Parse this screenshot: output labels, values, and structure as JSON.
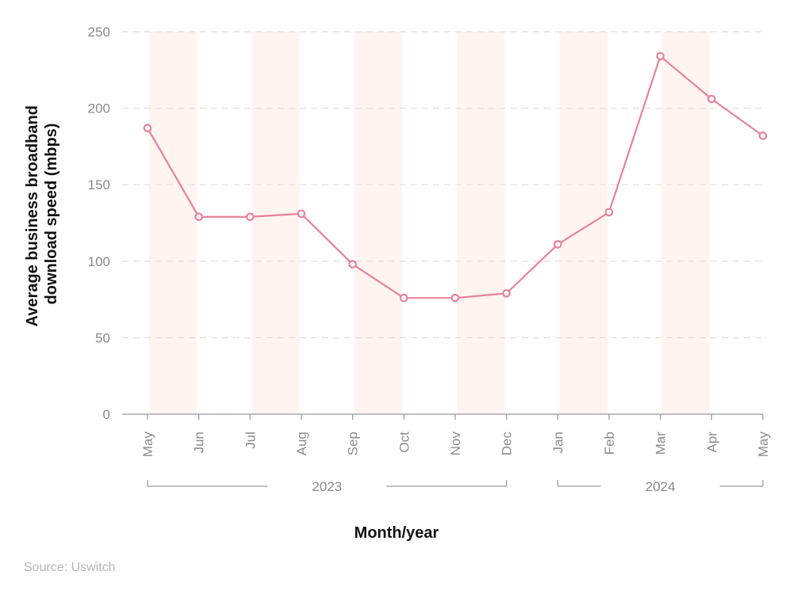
{
  "chart_data": {
    "type": "line",
    "categories": [
      "May",
      "Jun",
      "Jul",
      "Aug",
      "Sep",
      "Oct",
      "Nov",
      "Dec",
      "Jan",
      "Feb",
      "Mar",
      "Apr",
      "May"
    ],
    "series": [
      {
        "values": [
          187,
          129,
          129,
          131,
          98,
          76,
          76,
          79,
          111,
          132,
          234,
          206,
          182
        ]
      }
    ],
    "year_groups": [
      {
        "label": "2023",
        "start": 0,
        "end": 7
      },
      {
        "label": "2024",
        "start": 8,
        "end": 12
      }
    ],
    "ylabel_lines": [
      "Average business broadband",
      "download speed (mbps)"
    ],
    "xlabel": "Month/year",
    "ylim": [
      0,
      250
    ],
    "yticks": [
      0,
      50,
      100,
      150,
      200,
      250
    ],
    "grid": true,
    "source": "Source: Uswitch",
    "colors": {
      "line": "#e8819c",
      "band": "#fff4f0",
      "grid": "#e4dcd8",
      "axis": "#999999"
    }
  }
}
